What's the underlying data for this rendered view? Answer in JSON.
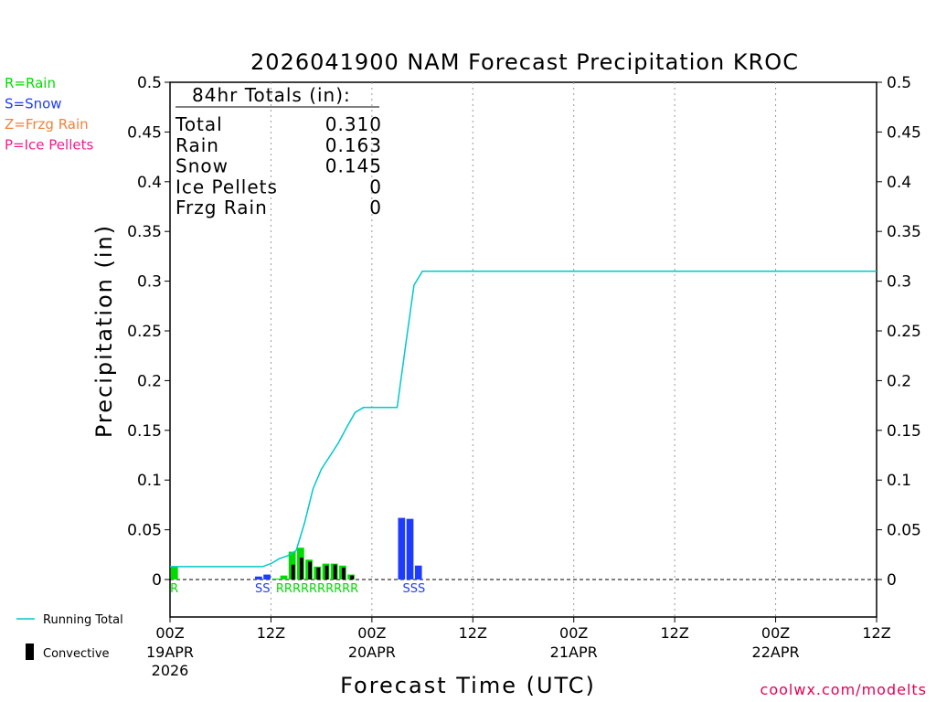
{
  "chart_data": {
    "type": "bar",
    "title": "2026041900 NAM Forecast Precipitation KROC",
    "xlabel": "Forecast Time (UTC)",
    "ylabel": "Precipitation (in)",
    "ylim": [
      0,
      0.5
    ],
    "xlim_hours": [
      0,
      84
    ],
    "y_ticks": [
      "0",
      "0.05",
      "0.1",
      "0.15",
      "0.2",
      "0.25",
      "0.3",
      "0.35",
      "0.4",
      "0.45",
      "0.5"
    ],
    "y_tick_values": [
      0,
      0.05,
      0.1,
      0.15,
      0.2,
      0.25,
      0.3,
      0.35,
      0.4,
      0.45,
      0.5
    ],
    "x_ticks": [
      {
        "hour": 0,
        "label": "00Z",
        "date": "19APR",
        "year": "2026"
      },
      {
        "hour": 12,
        "label": "12Z",
        "date": "",
        "year": ""
      },
      {
        "hour": 24,
        "label": "00Z",
        "date": "20APR",
        "year": ""
      },
      {
        "hour": 36,
        "label": "12Z",
        "date": "",
        "year": ""
      },
      {
        "hour": 48,
        "label": "00Z",
        "date": "21APR",
        "year": ""
      },
      {
        "hour": 60,
        "label": "12Z",
        "date": "",
        "year": ""
      },
      {
        "hour": 72,
        "label": "00Z",
        "date": "22APR",
        "year": ""
      },
      {
        "hour": 84,
        "label": "12Z",
        "date": "",
        "year": ""
      }
    ],
    "bars": [
      {
        "hour": 1,
        "value": 0.013,
        "convective": 0,
        "type": "R"
      },
      {
        "hour": 11,
        "value": 0.003,
        "convective": 0,
        "type": "S"
      },
      {
        "hour": 12,
        "value": 0.005,
        "convective": 0,
        "type": "S"
      },
      {
        "hour": 13,
        "value": 0.001,
        "convective": 0,
        "type": "R"
      },
      {
        "hour": 14,
        "value": 0.004,
        "convective": 0,
        "type": "R"
      },
      {
        "hour": 15,
        "value": 0.028,
        "convective": 0.015,
        "type": "R"
      },
      {
        "hour": 16,
        "value": 0.032,
        "convective": 0.022,
        "type": "R"
      },
      {
        "hour": 17,
        "value": 0.02,
        "convective": 0.018,
        "type": "R"
      },
      {
        "hour": 18,
        "value": 0.013,
        "convective": 0.012,
        "type": "R"
      },
      {
        "hour": 19,
        "value": 0.016,
        "convective": 0.014,
        "type": "R"
      },
      {
        "hour": 20,
        "value": 0.016,
        "convective": 0.015,
        "type": "R"
      },
      {
        "hour": 21,
        "value": 0.014,
        "convective": 0.012,
        "type": "R"
      },
      {
        "hour": 22,
        "value": 0.005,
        "convective": 0.004,
        "type": "R"
      },
      {
        "hour": 28,
        "value": 0.062,
        "convective": 0,
        "type": "S"
      },
      {
        "hour": 29,
        "value": 0.061,
        "convective": 0,
        "type": "S"
      },
      {
        "hour": 30,
        "value": 0.014,
        "convective": 0,
        "type": "S"
      }
    ],
    "precip_letters": [
      {
        "hour": 1,
        "text": "R",
        "type": "R"
      },
      {
        "hour": 11.5,
        "text": "SS",
        "type": "S"
      },
      {
        "hour": 18,
        "text": "RRRRRRRRRR",
        "type": "R"
      },
      {
        "hour": 29.5,
        "text": "SSS",
        "type": "S"
      }
    ],
    "running_total": {
      "hours": [
        0,
        11,
        12,
        13,
        14,
        15,
        16,
        17,
        18,
        19,
        20,
        21,
        22,
        23,
        24,
        27,
        28,
        29,
        30,
        84
      ],
      "values": [
        0.013,
        0.013,
        0.016,
        0.021,
        0.024,
        0.029,
        0.057,
        0.091,
        0.111,
        0.124,
        0.137,
        0.153,
        0.168,
        0.173,
        0.173,
        0.173,
        0.235,
        0.296,
        0.31,
        0.31
      ]
    },
    "totals_box": {
      "heading": "84hr Totals (in):",
      "rows": [
        {
          "label": "Total",
          "value": "0.310"
        },
        {
          "label": "Rain",
          "value": "0.163"
        },
        {
          "label": "Snow",
          "value": "0.145"
        },
        {
          "label": "Ice Pellets",
          "value": "0"
        },
        {
          "label": "Frzg Rain",
          "value": "0"
        }
      ]
    },
    "legend_types": [
      {
        "text": "R=Rain",
        "color": "#00dc00"
      },
      {
        "text": "S=Snow",
        "color": "#1e3cff"
      },
      {
        "text": "Z=Frzg Rain",
        "color": "#f0823c"
      },
      {
        "text": "P=Ice Pellets",
        "color": "#f01e8c"
      }
    ],
    "legend_running_total": "Running Total",
    "legend_convective": "Convective",
    "colors": {
      "rain": "#00dc00",
      "snow": "#1e3cff",
      "running_total": "#00c8c8",
      "convective": "#000000",
      "credit": "#e60050"
    },
    "credit": "coolwx.com/modelts"
  }
}
